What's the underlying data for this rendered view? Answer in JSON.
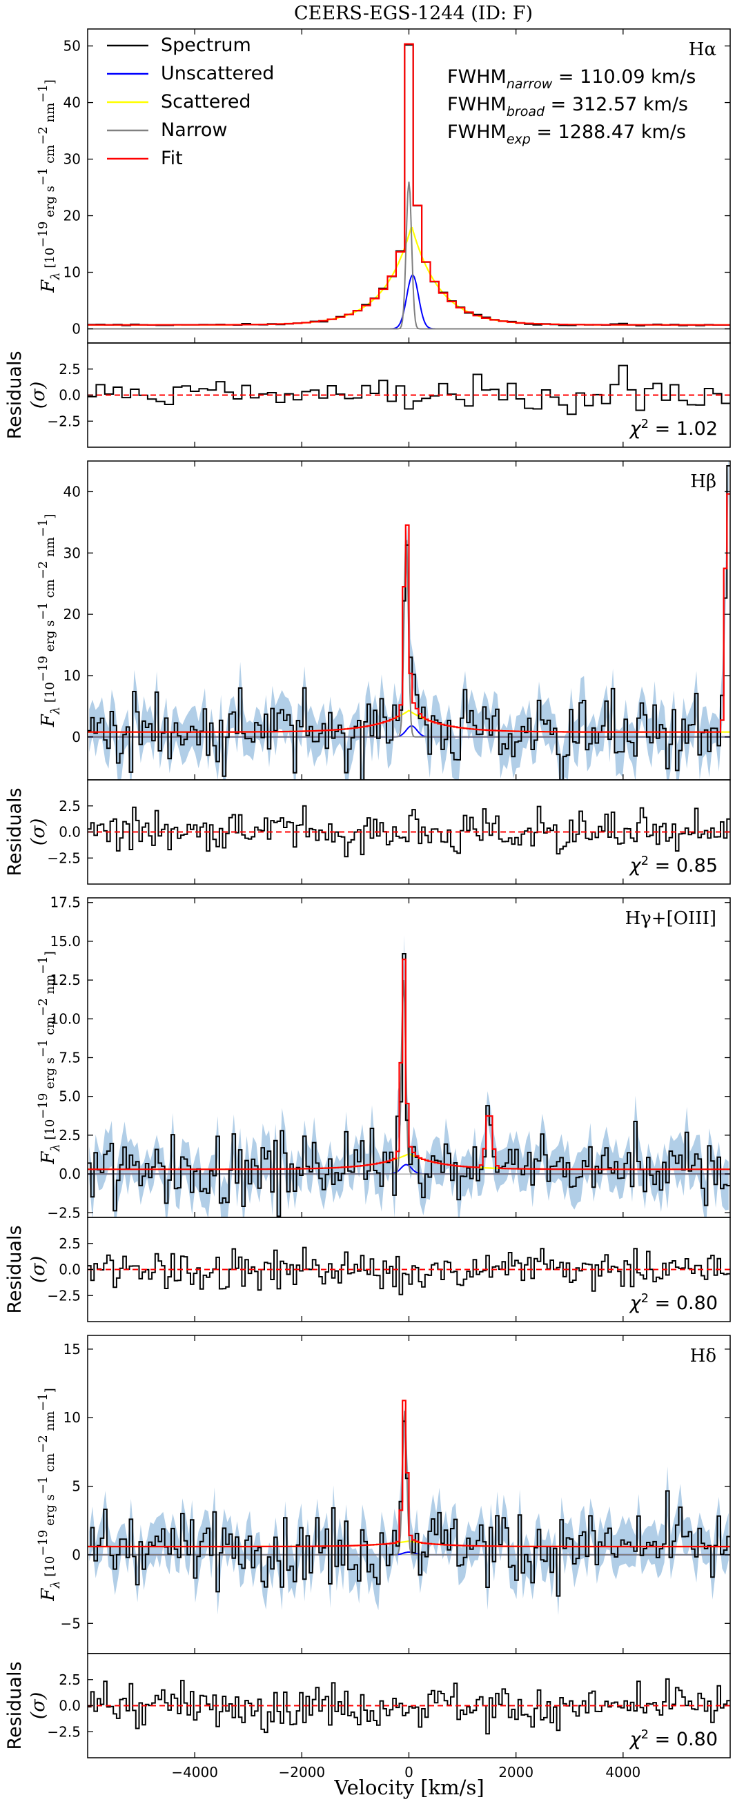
{
  "figure_title": "CEERS-EGS-1244 (ID: F)",
  "x_axis": {
    "label": "Velocity [km/s]",
    "xlim": [
      -6000,
      6000
    ],
    "ticks": [
      -4000,
      -2000,
      0,
      2000,
      4000
    ],
    "tick_labels": [
      "−4000",
      "−2000",
      "0",
      "2000",
      "4000"
    ]
  },
  "legend": [
    {
      "label": "Spectrum",
      "color": "#000000"
    },
    {
      "label": "Unscattered",
      "color": "#0000ff"
    },
    {
      "label": "Scattered",
      "color": "#ffff00"
    },
    {
      "label": "Narrow",
      "color": "#808080"
    },
    {
      "label": "Fit",
      "color": "#ff0000"
    }
  ],
  "colors": {
    "spectrum": "#000000",
    "unscattered": "#0000ff",
    "scattered": "#ffff00",
    "narrow": "#808080",
    "fit": "#ff0000",
    "error_band": "#a9c9e4"
  },
  "residual_ylabel": [
    "Residuals",
    "(σ)"
  ],
  "flux_ylabel": [
    "F",
    "λ",
    " [10",
    "−19",
    " erg s",
    "−1",
    " cm",
    "−2",
    " nm",
    "−1",
    "]"
  ],
  "chart_data": [
    {
      "type": "line",
      "line": "Hα",
      "ylabel": "Fλ [10⁻¹⁹ erg s⁻¹ cm⁻² nm⁻¹]",
      "ylim": [
        -2.5,
        53
      ],
      "yticks": [
        0,
        10,
        20,
        30,
        40,
        50
      ],
      "fwhm": [
        "FWHM",
        "narrow",
        " = 110.09 km/s",
        "FWHM",
        "broad",
        " = 312.57 km/s",
        "FWHM",
        "exp",
        " = 1288.47 km/s"
      ],
      "has_error_band": false,
      "step_kms": 160,
      "model": {
        "narrow_peak": 26,
        "narrow_center": 0,
        "narrow_sigma": 50,
        "unscat_peak": 9.5,
        "unscat_center": 70,
        "unscat_sigma": 110,
        "scat_peak": 17.5,
        "scat_center": 50,
        "scat_width": 520,
        "continuum": 0.7,
        "extra_peaks": []
      },
      "residuals": {
        "ylim": [
          -5,
          5
        ],
        "yticks": [
          -2.5,
          0.0,
          2.5
        ],
        "chi2": "1.02"
      }
    },
    {
      "type": "line",
      "line": "Hβ",
      "ylabel": "Fλ [10⁻¹⁹ erg s⁻¹ cm⁻² nm⁻¹]",
      "ylim": [
        -7,
        45
      ],
      "yticks": [
        0,
        10,
        20,
        30,
        40
      ],
      "has_error_band": true,
      "step_kms": 60,
      "model": {
        "narrow_peak": 33,
        "narrow_center": -50,
        "narrow_sigma": 40,
        "unscat_peak": 1.8,
        "unscat_center": 50,
        "unscat_sigma": 100,
        "scat_peak": 3.5,
        "scat_center": 0,
        "scat_width": 600,
        "continuum": 0.8,
        "extra_peaks": [
          {
            "center": 5950,
            "height": 44,
            "sigma": 40
          }
        ]
      },
      "residuals": {
        "ylim": [
          -5,
          5
        ],
        "yticks": [
          -2.5,
          0.0,
          2.5
        ],
        "chi2": "0.85"
      }
    },
    {
      "type": "line",
      "line": "Hγ+[OIII]",
      "ylabel": "Fλ [10⁻¹⁹ erg s⁻¹ cm⁻² nm⁻¹]",
      "ylim": [
        -2.8,
        17.8
      ],
      "yticks": [
        -2.5,
        0.0,
        2.5,
        5.0,
        7.5,
        10.0,
        12.5,
        15.0,
        17.5
      ],
      "has_error_band": true,
      "step_kms": 60,
      "model": {
        "narrow_peak": 12.5,
        "narrow_center": -100,
        "narrow_sigma": 40,
        "unscat_peak": 0.6,
        "unscat_center": -50,
        "unscat_sigma": 100,
        "scat_peak": 1.0,
        "scat_center": 0,
        "scat_width": 600,
        "continuum": 0.3,
        "extra_peaks": [
          {
            "center": 1500,
            "height": 3.8,
            "sigma": 60
          }
        ]
      },
      "residuals": {
        "ylim": [
          -5,
          5
        ],
        "yticks": [
          -2.5,
          0.0,
          2.5
        ],
        "chi2": "0.80"
      }
    },
    {
      "type": "line",
      "line": "Hδ",
      "ylabel": "Fλ [10⁻¹⁹ erg s⁻¹ cm⁻² nm⁻¹]",
      "ylim": [
        -7.2,
        16
      ],
      "yticks": [
        -5,
        0,
        5,
        10,
        15
      ],
      "has_error_band": true,
      "step_kms": 60,
      "model": {
        "narrow_peak": 10.5,
        "narrow_center": -80,
        "narrow_sigma": 40,
        "unscat_peak": 0.2,
        "unscat_center": 0,
        "unscat_sigma": 100,
        "scat_peak": 0.4,
        "scat_center": 0,
        "scat_width": 600,
        "continuum": 0.6,
        "extra_peaks": []
      },
      "residuals": {
        "ylim": [
          -5,
          5
        ],
        "yticks": [
          -2.5,
          0.0,
          2.5
        ],
        "chi2": "0.80"
      }
    }
  ]
}
